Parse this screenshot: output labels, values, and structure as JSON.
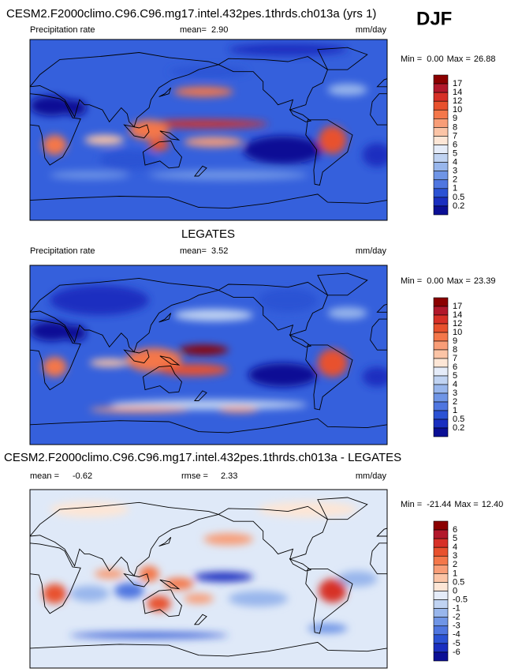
{
  "panels": [
    {
      "title": "CESM2.F2000climo.C96.C96.mg17.intel.432pes.1thrds.ch013a (yrs 1)",
      "season": "DJF",
      "variable": "Precipitation rate",
      "mean_label": "mean=",
      "mean": "2.90",
      "units": "mm/day",
      "min_label": "Min =",
      "min": "0.00",
      "max_label": "Max =",
      "max": "26.88",
      "colorbar": {
        "labels": [
          "17",
          "14",
          "12",
          "10",
          "9",
          "8",
          "7",
          "6",
          "5",
          "4",
          "3",
          "2",
          "1",
          "0.5",
          "0.2"
        ],
        "colors": [
          "#8b0000",
          "#b2182b",
          "#d73027",
          "#e8512d",
          "#f4774a",
          "#f89d77",
          "#fbc4a6",
          "#fde6d6",
          "#e5ecf9",
          "#c0d3f2",
          "#98b6ec",
          "#6f95e6",
          "#4f76e0",
          "#2b52d4",
          "#1a2fc0",
          "#0b0f95"
        ]
      }
    },
    {
      "title": "LEGATES",
      "variable": "Precipitation rate",
      "mean_label": "mean=",
      "mean": "3.52",
      "units": "mm/day",
      "min_label": "Min =",
      "min": "0.00",
      "max_label": "Max =",
      "max": "23.39",
      "colorbar": {
        "labels": [
          "17",
          "14",
          "12",
          "10",
          "9",
          "8",
          "7",
          "6",
          "5",
          "4",
          "3",
          "2",
          "1",
          "0.5",
          "0.2"
        ],
        "colors": [
          "#8b0000",
          "#b2182b",
          "#d73027",
          "#e8512d",
          "#f4774a",
          "#f89d77",
          "#fbc4a6",
          "#fde6d6",
          "#e5ecf9",
          "#c0d3f2",
          "#98b6ec",
          "#6f95e6",
          "#4f76e0",
          "#2b52d4",
          "#1a2fc0",
          "#0b0f95"
        ]
      }
    },
    {
      "title": "CESM2.F2000climo.C96.C96.mg17.intel.432pes.1thrds.ch013a - LEGATES",
      "mean_label": "mean =",
      "mean": "-0.62",
      "rmse_label": "rmse =",
      "rmse": "2.33",
      "units": "mm/day",
      "min_label": "Min =",
      "min": "-21.44",
      "max_label": "Max =",
      "max": "12.40",
      "colorbar": {
        "labels": [
          "6",
          "5",
          "4",
          "3",
          "2",
          "1",
          "0.5",
          "0",
          "-0.5",
          "-1",
          "-2",
          "-3",
          "-4",
          "-5",
          "-6"
        ],
        "colors": [
          "#8b0000",
          "#b2182b",
          "#d73027",
          "#e8512d",
          "#f4774a",
          "#f89d77",
          "#fbc4a6",
          "#fde6d6",
          "#e5ecf9",
          "#c0d3f2",
          "#98b6ec",
          "#6f95e6",
          "#4f76e0",
          "#2b52d4",
          "#1a2fc0",
          "#0b0f95"
        ]
      }
    }
  ]
}
